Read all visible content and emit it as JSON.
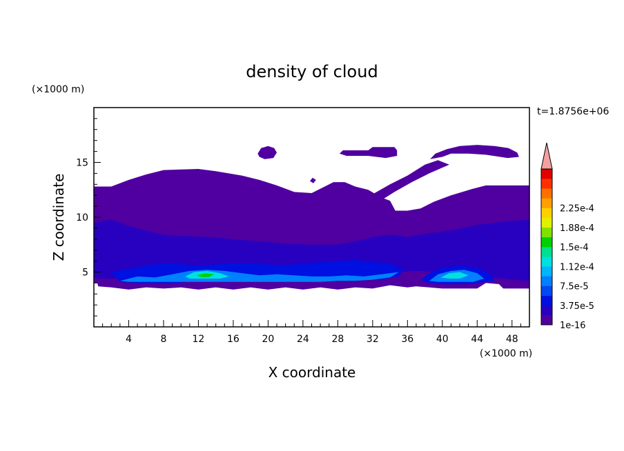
{
  "chart_data": {
    "type": "heatmap",
    "title": "density of cloud",
    "xlabel": "X coordinate",
    "ylabel": "Z coordinate",
    "x_unit": "(×1000 m)",
    "y_unit": "(×1000 m)",
    "time_label": "t=1.8756e+06",
    "xlim": [
      0,
      50
    ],
    "ylim": [
      0,
      20
    ],
    "x_ticks": [
      4,
      8,
      12,
      16,
      20,
      24,
      28,
      32,
      36,
      40,
      44,
      48
    ],
    "y_ticks": [
      5,
      10,
      15
    ],
    "colorbar": {
      "labels": [
        "1e-16",
        "3.75e-5",
        "7.5e-5",
        "1.12e-4",
        "1.5e-4",
        "1.88e-4",
        "2.25e-4"
      ],
      "colors": [
        "#5000a0",
        "#2800c0",
        "#0010e0",
        "#0048f0",
        "#0080ff",
        "#00b4ff",
        "#00e0e0",
        "#00e090",
        "#00d000",
        "#80e000",
        "#e0f000",
        "#ffd000",
        "#ffa000",
        "#ff7000",
        "#ff3000",
        "#e00000"
      ],
      "extend_color": "#f4a0a0"
    },
    "cloud_color": "#5000a0",
    "regions": [
      {
        "level": 0,
        "polygon": [
          [
            0,
            12.8
          ],
          [
            2,
            12.8
          ],
          [
            4,
            13.4
          ],
          [
            6,
            13.9
          ],
          [
            8,
            14.3
          ],
          [
            12,
            14.4
          ],
          [
            14,
            14.2
          ],
          [
            17,
            13.8
          ],
          [
            19,
            13.4
          ],
          [
            21,
            12.9
          ],
          [
            23,
            12.3
          ],
          [
            25,
            12.2
          ],
          [
            26.5,
            12.8
          ],
          [
            27.5,
            13.2
          ],
          [
            28.8,
            13.2
          ],
          [
            30,
            12.8
          ],
          [
            31.5,
            12.5
          ],
          [
            33,
            11.8
          ],
          [
            34,
            11.5
          ],
          [
            34.6,
            10.6
          ],
          [
            36,
            10.6
          ],
          [
            37.5,
            10.8
          ],
          [
            39,
            11.4
          ],
          [
            41,
            12
          ],
          [
            43.5,
            12.6
          ],
          [
            45,
            12.9
          ],
          [
            50,
            12.9
          ],
          [
            50,
            3.5
          ],
          [
            47,
            3.5
          ],
          [
            46.5,
            3.9
          ],
          [
            45,
            4
          ],
          [
            44,
            3.5
          ],
          [
            42,
            3.5
          ],
          [
            40,
            3.5
          ],
          [
            38.5,
            3.6
          ],
          [
            37,
            3.7
          ],
          [
            36,
            3.6
          ],
          [
            34,
            3.8
          ],
          [
            32,
            3.5
          ],
          [
            30,
            3.6
          ],
          [
            28,
            3.4
          ],
          [
            26,
            3.6
          ],
          [
            24,
            3.4
          ],
          [
            22,
            3.6
          ],
          [
            20,
            3.4
          ],
          [
            18,
            3.6
          ],
          [
            16,
            3.4
          ],
          [
            14,
            3.6
          ],
          [
            12,
            3.4
          ],
          [
            10,
            3.6
          ],
          [
            8,
            3.5
          ],
          [
            6,
            3.6
          ],
          [
            4,
            3.4
          ],
          [
            2,
            3.6
          ],
          [
            0.5,
            3.7
          ],
          [
            0.4,
            4
          ],
          [
            0,
            4
          ]
        ]
      },
      {
        "level": 0,
        "polygon": [
          [
            30.6,
            10.6
          ],
          [
            31,
            11.5
          ],
          [
            32,
            12.1
          ],
          [
            34,
            13
          ],
          [
            36,
            13.8
          ],
          [
            38,
            14.8
          ],
          [
            39.5,
            15.2
          ],
          [
            40.8,
            14.8
          ],
          [
            38.5,
            14
          ],
          [
            36.5,
            13.2
          ],
          [
            34.5,
            12.3
          ],
          [
            32.5,
            11.3
          ],
          [
            31.5,
            10.8
          ]
        ]
      },
      {
        "level": 0,
        "polygon": [
          [
            38.6,
            15.3
          ],
          [
            39.2,
            15.8
          ],
          [
            40.5,
            16.2
          ],
          [
            42,
            16.5
          ],
          [
            44,
            16.6
          ],
          [
            46,
            16.5
          ],
          [
            47.6,
            16.3
          ],
          [
            48.6,
            15.9
          ],
          [
            48.8,
            15.5
          ],
          [
            47.5,
            15.4
          ],
          [
            45,
            15.7
          ],
          [
            43,
            15.8
          ],
          [
            41,
            15.8
          ],
          [
            40,
            15.5
          ]
        ]
      },
      {
        "level": 0,
        "polygon": [
          [
            28.2,
            15.8
          ],
          [
            28.6,
            16.1
          ],
          [
            31.5,
            16.1
          ],
          [
            32,
            16.4
          ],
          [
            34.5,
            16.4
          ],
          [
            34.8,
            16.1
          ],
          [
            34.8,
            15.6
          ],
          [
            33.5,
            15.4
          ],
          [
            31.5,
            15.6
          ],
          [
            29,
            15.6
          ]
        ]
      },
      {
        "level": 0,
        "polygon": [
          [
            18.8,
            15.8
          ],
          [
            19.2,
            16.3
          ],
          [
            20,
            16.5
          ],
          [
            20.7,
            16.3
          ],
          [
            21,
            15.9
          ],
          [
            20.6,
            15.4
          ],
          [
            19.6,
            15.3
          ],
          [
            19,
            15.5
          ]
        ]
      },
      {
        "level": 0,
        "polygon": [
          [
            24.8,
            13.3
          ],
          [
            25.1,
            13.6
          ],
          [
            25.5,
            13.4
          ],
          [
            25.2,
            13.1
          ]
        ]
      },
      {
        "level": 1,
        "polygon": [
          [
            0,
            9.5
          ],
          [
            2,
            9.8
          ],
          [
            4,
            9.2
          ],
          [
            6,
            8.8
          ],
          [
            8,
            8.4
          ],
          [
            10,
            8.3
          ],
          [
            13,
            8.2
          ],
          [
            16,
            8
          ],
          [
            19,
            7.8
          ],
          [
            22,
            7.6
          ],
          [
            25,
            7.5
          ],
          [
            28,
            7.5
          ],
          [
            30,
            7.8
          ],
          [
            32,
            8.2
          ],
          [
            34,
            8.4
          ],
          [
            36,
            8.2
          ],
          [
            38,
            8.5
          ],
          [
            41,
            8.8
          ],
          [
            44,
            9.3
          ],
          [
            47,
            9.6
          ],
          [
            50,
            9.8
          ],
          [
            50,
            4.2
          ],
          [
            48,
            4.3
          ],
          [
            46,
            4.5
          ],
          [
            44,
            4.6
          ],
          [
            42,
            4.8
          ],
          [
            39,
            5
          ],
          [
            37,
            5.1
          ],
          [
            35,
            5
          ],
          [
            33,
            5.2
          ],
          [
            31,
            5.4
          ],
          [
            29,
            5.3
          ],
          [
            27,
            5.3
          ],
          [
            25,
            5.3
          ],
          [
            23,
            5.3
          ],
          [
            21,
            5.4
          ],
          [
            19,
            5.5
          ],
          [
            17,
            5.4
          ],
          [
            15,
            5.2
          ],
          [
            13,
            5
          ],
          [
            11,
            5
          ],
          [
            9,
            4.8
          ],
          [
            7,
            4.7
          ],
          [
            5,
            4.6
          ],
          [
            3,
            4.4
          ],
          [
            1,
            4.4
          ],
          [
            0,
            4.5
          ]
        ]
      },
      {
        "level": 2,
        "polygon": [
          [
            2,
            5
          ],
          [
            4,
            5.3
          ],
          [
            6,
            5.6
          ],
          [
            8,
            5.8
          ],
          [
            10,
            5.7
          ],
          [
            12,
            5.6
          ],
          [
            14,
            5.7
          ],
          [
            16,
            5.8
          ],
          [
            18,
            5.8
          ],
          [
            20,
            5.7
          ],
          [
            22,
            5.6
          ],
          [
            24,
            5.8
          ],
          [
            26,
            5.9
          ],
          [
            28,
            6
          ],
          [
            30,
            6.1
          ],
          [
            32,
            5.9
          ],
          [
            34,
            5.8
          ],
          [
            35.5,
            5.2
          ],
          [
            35,
            4.6
          ],
          [
            33,
            4.3
          ],
          [
            31,
            4.4
          ],
          [
            29,
            4.3
          ],
          [
            27,
            4.3
          ],
          [
            25,
            4.2
          ],
          [
            23,
            4.3
          ],
          [
            21,
            4.2
          ],
          [
            19,
            4.3
          ],
          [
            17,
            4.2
          ],
          [
            15,
            4.1
          ],
          [
            13,
            4.1
          ],
          [
            11,
            4.1
          ],
          [
            9,
            4
          ],
          [
            7,
            4
          ],
          [
            5,
            4
          ],
          [
            3,
            4.1
          ]
        ]
      },
      {
        "level": 2,
        "polygon": [
          [
            37.5,
            4.3
          ],
          [
            38.5,
            4.9
          ],
          [
            40,
            5.4
          ],
          [
            42,
            5.6
          ],
          [
            44,
            5.4
          ],
          [
            45.5,
            4.8
          ],
          [
            46,
            4.2
          ],
          [
            44,
            4
          ],
          [
            42,
            3.9
          ],
          [
            40,
            3.9
          ],
          [
            38.5,
            4
          ]
        ]
      },
      {
        "level": 4,
        "polygon": [
          [
            3,
            4.2
          ],
          [
            5,
            4.6
          ],
          [
            7,
            4.5
          ],
          [
            9,
            4.8
          ],
          [
            11,
            5.1
          ],
          [
            13,
            5.2
          ],
          [
            15,
            5.1
          ],
          [
            17,
            4.9
          ],
          [
            19,
            4.7
          ],
          [
            21,
            4.8
          ],
          [
            23,
            4.7
          ],
          [
            25,
            4.6
          ],
          [
            27,
            4.6
          ],
          [
            29,
            4.7
          ],
          [
            31,
            4.6
          ],
          [
            33,
            4.8
          ],
          [
            35,
            5
          ],
          [
            34,
            4.5
          ],
          [
            32,
            4.3
          ],
          [
            30,
            4.2
          ],
          [
            28,
            4.2
          ],
          [
            26,
            4.1
          ],
          [
            24,
            4.1
          ],
          [
            22,
            4.1
          ],
          [
            20,
            4.1
          ],
          [
            18,
            4.1
          ],
          [
            16,
            4.1
          ],
          [
            14,
            4.1
          ],
          [
            12,
            4.1
          ],
          [
            10,
            4.1
          ],
          [
            8,
            4.1
          ],
          [
            6,
            4.1
          ],
          [
            4,
            4.1
          ]
        ]
      },
      {
        "level": 4,
        "polygon": [
          [
            38.5,
            4.2
          ],
          [
            39.5,
            4.8
          ],
          [
            41,
            5.1
          ],
          [
            42.5,
            5.2
          ],
          [
            44,
            4.9
          ],
          [
            44.8,
            4.4
          ],
          [
            43.5,
            4.1
          ],
          [
            41.5,
            4.1
          ],
          [
            39.5,
            4.1
          ]
        ]
      },
      {
        "level": 6,
        "polygon": [
          [
            10.5,
            4.6
          ],
          [
            11.5,
            5
          ],
          [
            13,
            5.1
          ],
          [
            14.5,
            4.9
          ],
          [
            15.5,
            4.6
          ],
          [
            14.5,
            4.4
          ],
          [
            12.5,
            4.4
          ],
          [
            11,
            4.4
          ]
        ]
      },
      {
        "level": 6,
        "polygon": [
          [
            39.8,
            4.5
          ],
          [
            40.8,
            4.9
          ],
          [
            42,
            5
          ],
          [
            43,
            4.7
          ],
          [
            42,
            4.4
          ],
          [
            40.8,
            4.4
          ]
        ]
      },
      {
        "level": 8,
        "polygon": [
          [
            11.8,
            4.7
          ],
          [
            12.8,
            4.9
          ],
          [
            13.8,
            4.8
          ],
          [
            13.2,
            4.55
          ],
          [
            12.3,
            4.55
          ]
        ]
      }
    ]
  }
}
